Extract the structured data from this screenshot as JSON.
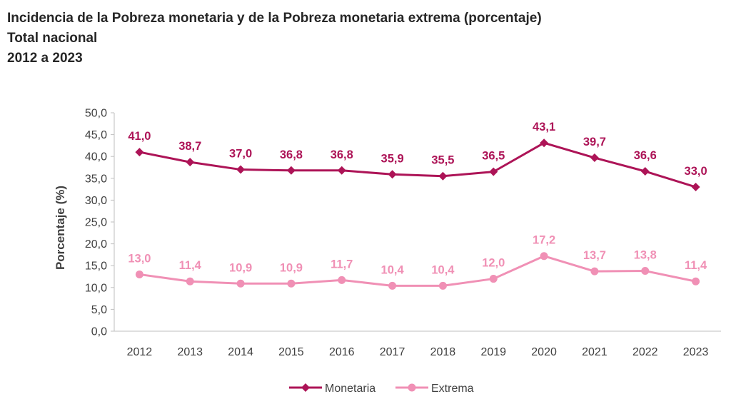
{
  "title": {
    "line1": "Incidencia de la Pobreza monetaria y de la Pobreza monetaria extrema (porcentaje)",
    "line2": "Total nacional",
    "line3": "2012 a 2023"
  },
  "chart_data": {
    "type": "line",
    "title": "Incidencia de la Pobreza monetaria y de la Pobreza monetaria extrema (porcentaje)",
    "subtitle": "Total nacional 2012 a 2023",
    "xlabel": "",
    "ylabel": "Porcentaje (%)",
    "ylim": [
      0,
      50
    ],
    "yticks": [
      "0,0",
      "5,0",
      "10,0",
      "15,0",
      "20,0",
      "25,0",
      "30,0",
      "35,0",
      "40,0",
      "45,0",
      "50,0"
    ],
    "categories": [
      "2012",
      "2013",
      "2014",
      "2015",
      "2016",
      "2017",
      "2018",
      "2019",
      "2020",
      "2021",
      "2022",
      "2023"
    ],
    "grid": false,
    "legend": "bottom-center",
    "series": [
      {
        "name": "Monetaria",
        "color": "#ad1457",
        "marker": "diamond",
        "values": [
          41.0,
          38.7,
          37.0,
          36.8,
          36.8,
          35.9,
          35.5,
          36.5,
          43.1,
          39.7,
          36.6,
          33.0
        ],
        "labels": [
          "41,0",
          "38,7",
          "37,0",
          "36,8",
          "36,8",
          "35,9",
          "35,5",
          "36,5",
          "43,1",
          "39,7",
          "36,6",
          "33,0"
        ]
      },
      {
        "name": "Extrema",
        "color": "#f090b5",
        "marker": "circle",
        "values": [
          13.0,
          11.4,
          10.9,
          10.9,
          11.7,
          10.4,
          10.4,
          12.0,
          17.2,
          13.7,
          13.8,
          11.4
        ],
        "labels": [
          "13,0",
          "11,4",
          "10,9",
          "10,9",
          "11,7",
          "10,4",
          "10,4",
          "12,0",
          "17,2",
          "13,7",
          "13,8",
          "11,4"
        ]
      }
    ]
  }
}
